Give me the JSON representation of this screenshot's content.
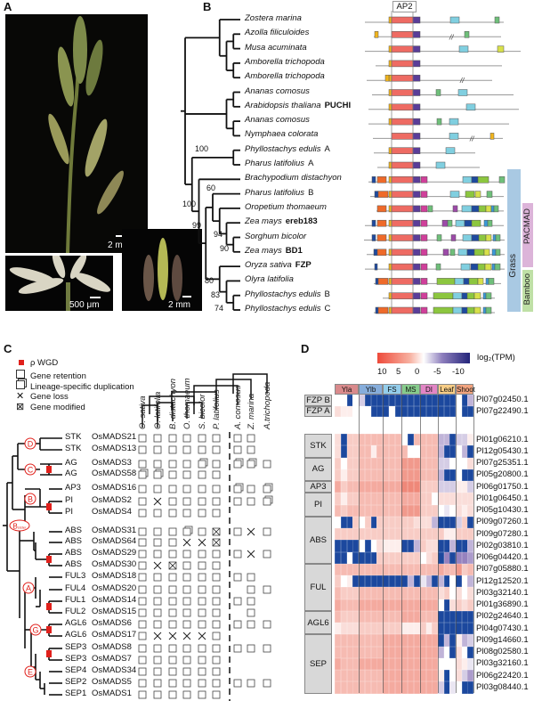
{
  "panels": {
    "a": "A",
    "b": "B",
    "c": "C",
    "d": "D"
  },
  "panel_a": {
    "scale_bars": [
      "2 mm",
      "500 μm",
      "2 mm"
    ]
  },
  "panel_b": {
    "domain_label": "AP2",
    "species": [
      {
        "name": "Zostera marina",
        "gene": ""
      },
      {
        "name": "Azolla filiculoides",
        "gene": ""
      },
      {
        "name": "Musa acuminata",
        "gene": ""
      },
      {
        "name": "Amborella trichopoda",
        "gene": ""
      },
      {
        "name": "Amborella trichopoda",
        "gene": ""
      },
      {
        "name": "Ananas comosus",
        "gene": ""
      },
      {
        "name": "Arabidopsis thaliana",
        "gene": "PUCHI"
      },
      {
        "name": "Ananas comosus",
        "gene": ""
      },
      {
        "name": "Nymphaea colorata",
        "gene": ""
      },
      {
        "name": "Phyllostachys edulis",
        "gene": "A",
        "plain": true
      },
      {
        "name": "Pharus latifolius",
        "gene": "A",
        "plain": true
      },
      {
        "name": "Brachypodium distachyon",
        "gene": ""
      },
      {
        "name": "Pharus latifolius",
        "gene": "B",
        "plain": true
      },
      {
        "name": "Oropetium thomaeum",
        "gene": ""
      },
      {
        "name": "Zea mays",
        "gene": "ereb183"
      },
      {
        "name": "Sorghum bicolor",
        "gene": ""
      },
      {
        "name": "Zea mays",
        "gene": "BD1"
      },
      {
        "name": "Oryza sativa",
        "gene": "FZP"
      },
      {
        "name": "Olyra latifolia",
        "gene": ""
      },
      {
        "name": "Phyllostachys edulis",
        "gene": "B",
        "plain": true
      },
      {
        "name": "Phyllostachys edulis",
        "gene": "C",
        "plain": true
      }
    ],
    "bootstrap": [
      "100",
      "100",
      "99",
      "60",
      "94",
      "90",
      "80",
      "83",
      "74"
    ],
    "clades": {
      "grass": "Grass",
      "pacmad": "PACMAD",
      "bamboo": "Bamboo"
    },
    "clade_colors": {
      "grass": "#a9c9e3",
      "pacmad": "#dcb4d9",
      "bamboo": "#bfe0a6"
    }
  },
  "panel_c": {
    "legend": [
      {
        "icon": "red-square",
        "label": "ρ WGD"
      },
      {
        "icon": "square",
        "label": "Gene retention"
      },
      {
        "icon": "stacked-squares",
        "label": "Lineage-specific duplication"
      },
      {
        "icon": "cross",
        "label": "Gene loss"
      },
      {
        "icon": "crossed-square",
        "label": "Gene modified"
      }
    ],
    "species": [
      "O. sativa",
      "O. latifolia",
      "B. distachyon",
      "O. thomaeum",
      "S. bicolor",
      "P. latifolius",
      "A. comosus",
      "Z. marina",
      "A.trichopoda"
    ],
    "nodes": [
      "D",
      "C",
      "B",
      "Bsister",
      "A",
      "G",
      "E"
    ],
    "rows": [
      {
        "clade": "STK",
        "gene": "OsMADS21",
        "s": "oooooo",
        "o": "oo"
      },
      {
        "clade": "STK",
        "gene": "OsMADS13",
        "s": "oooooo",
        "o": "oo_"
      },
      {
        "clade": "AG",
        "gene": "OsMADS3",
        "s": "ooooddo",
        "o": "ddo"
      },
      {
        "clade": "AG",
        "gene": "OsMADS58",
        "s": "ddoooo",
        "o": "___"
      },
      {
        "clade": "AP3",
        "gene": "OsMADS16",
        "s": "oooooo",
        "o": "dod"
      },
      {
        "clade": "PI",
        "gene": "OsMADS2",
        "s": "oxoooo",
        "o": "ood"
      },
      {
        "clade": "PI",
        "gene": "OsMADS4",
        "s": "oooooo",
        "o": "___"
      },
      {
        "clade": "ABS",
        "gene": "OsMADS31",
        "s": "ooodom",
        "o": "oxo"
      },
      {
        "clade": "ABS",
        "gene": "OsMADS64",
        "s": "oooxxm",
        "o": "___"
      },
      {
        "clade": "ABS",
        "gene": "OsMADS29",
        "s": "oooooo",
        "o": "oxo"
      },
      {
        "clade": "ABS",
        "gene": "OsMADS30",
        "s": "oxmooo",
        "o": "___"
      },
      {
        "clade": "FUL3",
        "gene": "OsMADS18",
        "s": "oooooo",
        "o": "oo_"
      },
      {
        "clade": "FUL4",
        "gene": "OsMADS20",
        "s": "oooooo",
        "o": "_oo"
      },
      {
        "clade": "FUL1",
        "gene": "OsMADS14",
        "s": "oooooo",
        "o": "oo_"
      },
      {
        "clade": "FUL2",
        "gene": "OsMADS15",
        "s": "oooooo",
        "o": "_o_"
      },
      {
        "clade": "AGL6",
        "gene": "OsMADS6",
        "s": "oooooo",
        "o": "ooo"
      },
      {
        "clade": "AGL6",
        "gene": "OsMADS17",
        "s": "oxxxxo",
        "o": "___"
      },
      {
        "clade": "SEP3",
        "gene": "OsMADS8",
        "s": "oooooo",
        "o": "ooo"
      },
      {
        "clade": "SEP3",
        "gene": "OsMADS7",
        "s": "oooooo",
        "o": "___"
      },
      {
        "clade": "SEP4",
        "gene": "OsMADS34",
        "s": "oooooo",
        "o": "___"
      },
      {
        "clade": "SEP2",
        "gene": "OsMADS5",
        "s": "oooooo",
        "o": "ooo"
      },
      {
        "clade": "SEP1",
        "gene": "OsMADS1",
        "s": "oooooo",
        "o": "___"
      }
    ]
  },
  "chart_data": {
    "type": "heatmap",
    "colorbar": {
      "label": "log₂(TPM)",
      "ticks": [
        "10",
        "5",
        "0",
        "-5",
        "-10"
      ],
      "range": [
        10,
        -10
      ],
      "colors": {
        "high": "#e8553f",
        "mid": "#ffffff",
        "low": "#23247a",
        "missing": "#1c489e"
      }
    },
    "column_groups": [
      {
        "name": "Yla",
        "n": 4,
        "color": "#d98a8c"
      },
      {
        "name": "Ylb",
        "n": 4,
        "color": "#86addb"
      },
      {
        "name": "FS",
        "n": 3,
        "color": "#93cdeb"
      },
      {
        "name": "MS",
        "n": 3,
        "color": "#86cc8c"
      },
      {
        "name": "DI",
        "n": 3,
        "color": "#e285c5"
      },
      {
        "name": "Leaf",
        "n": 3,
        "color": "#f7cd86"
      },
      {
        "name": "Shoot",
        "n": 3,
        "color": "#f2a47f"
      }
    ],
    "top_rows": [
      {
        "group": "FZP B",
        "gene": "Pl07g02450.1",
        "values": [
          0,
          0,
          -12,
          0,
          -2,
          -12,
          -12,
          -12,
          -12,
          -12,
          -12,
          -12,
          -12,
          -12,
          -12,
          -12,
          -12,
          -12,
          -12,
          -12,
          0,
          -12,
          -3
        ]
      },
      {
        "group": "FZP A",
        "gene": "Pl07g22490.1",
        "values": [
          2,
          1,
          1,
          0,
          0,
          0,
          -12,
          -12,
          -12,
          0,
          -12,
          -12,
          -12,
          -12,
          -12,
          -12,
          -12,
          -12,
          -12,
          -12,
          0,
          -12,
          -12
        ]
      }
    ],
    "row_groups": [
      {
        "name": "STK",
        "n": 2
      },
      {
        "name": "AG",
        "n": 2
      },
      {
        "name": "AP3",
        "n": 1
      },
      {
        "name": "PI",
        "n": 2
      },
      {
        "name": "ABS",
        "n": 4
      },
      {
        "name": "FUL",
        "n": 4
      },
      {
        "name": "AGL6",
        "n": 2
      },
      {
        "name": "SEP",
        "n": 5
      }
    ],
    "rows": [
      {
        "gene": "Pl01g06210.1",
        "values": [
          2,
          -12,
          3,
          3,
          4,
          4,
          4,
          4,
          4,
          4,
          4,
          0,
          -12,
          4,
          4,
          4,
          4,
          -3,
          -3,
          -12,
          -2,
          -2,
          1
        ]
      },
      {
        "gene": "Pl12g05430.1",
        "values": [
          2,
          -12,
          3,
          3,
          4,
          4,
          1,
          4,
          4,
          4,
          4,
          4,
          0,
          0,
          4,
          4,
          4,
          -3,
          -12,
          -12,
          0,
          -3,
          -12
        ]
      },
      {
        "gene": "Pl07g25351.1",
        "values": [
          3,
          0,
          3,
          3,
          4,
          4,
          4,
          4,
          4,
          4,
          4,
          6,
          6,
          6,
          4,
          4,
          4,
          -2,
          -2,
          0,
          0,
          0,
          2
        ]
      },
      {
        "gene": "Pl05g20800.1",
        "values": [
          3,
          1,
          3,
          3,
          4,
          4,
          4,
          4,
          4,
          4,
          4,
          6,
          6,
          6,
          4,
          4,
          4,
          -3,
          -12,
          -12,
          0,
          -12,
          -12
        ]
      },
      {
        "gene": "Pl06g01750.1",
        "values": [
          5,
          3,
          4,
          4,
          5,
          5,
          5,
          5,
          5,
          5,
          5,
          7,
          7,
          7,
          3,
          3,
          3,
          -2,
          -2,
          -2,
          1,
          1,
          -2
        ]
      },
      {
        "gene": "Pl01g06450.1",
        "values": [
          3,
          1,
          3,
          3,
          4,
          4,
          4,
          4,
          4,
          4,
          4,
          5,
          5,
          5,
          3,
          3,
          0,
          2,
          2,
          2,
          2,
          2,
          2
        ]
      },
      {
        "gene": "Pl05g10430.1",
        "values": [
          4,
          3,
          4,
          4,
          4,
          4,
          4,
          4,
          4,
          4,
          4,
          6,
          6,
          6,
          3,
          3,
          3,
          0,
          -1,
          0,
          2,
          1,
          2
        ]
      },
      {
        "gene": "Pl09g07260.1",
        "values": [
          0,
          -12,
          -12,
          3,
          0,
          3,
          -12,
          3,
          3,
          3,
          3,
          3,
          3,
          2,
          2,
          2,
          -3,
          -12,
          -12,
          -12,
          -2,
          3,
          -12
        ]
      },
      {
        "gene": "Pl09g07280.1",
        "values": [
          3,
          3,
          3,
          3,
          3,
          3,
          3,
          3,
          3,
          3,
          3,
          3,
          3,
          3,
          3,
          3,
          3,
          3,
          1,
          1,
          3,
          3,
          3
        ]
      },
      {
        "gene": "Pl02g03810.1",
        "values": [
          -12,
          -12,
          -12,
          -12,
          0,
          -12,
          0,
          2,
          1,
          1,
          1,
          -12,
          -12,
          -3,
          3,
          2,
          2,
          -12,
          -12,
          -3,
          -12,
          -12,
          -3
        ]
      },
      {
        "gene": "Pl06g04420.1",
        "values": [
          -12,
          -12,
          0,
          -12,
          -12,
          -12,
          -12,
          3,
          3,
          3,
          3,
          3,
          3,
          3,
          0,
          2,
          3,
          -12,
          -5,
          -12,
          -5,
          -5,
          -4
        ]
      },
      {
        "gene": "Pl07g05880.1",
        "values": [
          4,
          4,
          4,
          4,
          4,
          4,
          4,
          4,
          4,
          4,
          4,
          4,
          4,
          4,
          4,
          4,
          4,
          5,
          4,
          4,
          6,
          3,
          4
        ]
      },
      {
        "gene": "Pl12g12520.1",
        "values": [
          3,
          0,
          1,
          -12,
          -12,
          -12,
          -12,
          -12,
          -12,
          -12,
          -12,
          -12,
          -3,
          -12,
          -1,
          -3,
          -12,
          -3,
          -12,
          0,
          -12,
          0,
          -3
        ]
      },
      {
        "gene": "Pl03g32140.1",
        "values": [
          4,
          3,
          3,
          3,
          4,
          4,
          4,
          4,
          4,
          4,
          4,
          4,
          4,
          4,
          4,
          4,
          4,
          2,
          3,
          0,
          2,
          0,
          2
        ]
      },
      {
        "gene": "Pl01g36890.1",
        "values": [
          5,
          4,
          4,
          4,
          5,
          5,
          5,
          5,
          5,
          5,
          5,
          5,
          5,
          5,
          5,
          5,
          5,
          0,
          -12,
          2,
          3,
          2,
          3
        ]
      },
      {
        "gene": "Pl02g24640.1",
        "values": [
          4,
          3,
          3,
          3,
          4,
          4,
          4,
          4,
          4,
          4,
          4,
          5,
          5,
          5,
          4,
          4,
          4,
          -12,
          -12,
          -12,
          -12,
          -12,
          -12
        ]
      },
      {
        "gene": "Pl04g07430.1",
        "values": [
          1,
          2,
          2,
          2,
          3,
          3,
          3,
          3,
          3,
          3,
          3,
          1,
          1,
          1,
          3,
          1,
          3,
          -12,
          -12,
          -12,
          -12,
          -12,
          -12
        ]
      },
      {
        "gene": "Pl09g14660.1",
        "values": [
          4,
          4,
          4,
          4,
          4,
          4,
          4,
          4,
          5,
          5,
          5,
          5,
          5,
          5,
          5,
          5,
          5,
          -12,
          -3,
          -12,
          1,
          -3,
          -2
        ]
      },
      {
        "gene": "Pl08g02580.1",
        "values": [
          4,
          4,
          4,
          4,
          4,
          4,
          4,
          4,
          5,
          5,
          5,
          5,
          5,
          5,
          5,
          5,
          5,
          -3,
          0,
          -12,
          2,
          0,
          -12
        ]
      },
      {
        "gene": "Pl03g32160.1",
        "values": [
          5,
          4,
          4,
          4,
          5,
          5,
          5,
          5,
          5,
          5,
          5,
          5,
          5,
          5,
          5,
          5,
          5,
          0,
          0,
          0,
          2,
          1,
          -1
        ]
      },
      {
        "gene": "Pl06g22420.1",
        "values": [
          4,
          4,
          4,
          4,
          4,
          4,
          4,
          4,
          5,
          5,
          5,
          5,
          5,
          5,
          5,
          5,
          5,
          1,
          -12,
          0,
          2,
          -2,
          -4
        ]
      },
      {
        "gene": "Pl03g08440.1",
        "values": [
          4,
          4,
          4,
          4,
          4,
          4,
          4,
          4,
          5,
          5,
          5,
          5,
          5,
          5,
          5,
          5,
          5,
          -2,
          -12,
          -1,
          0,
          -12,
          -12
        ]
      }
    ]
  }
}
